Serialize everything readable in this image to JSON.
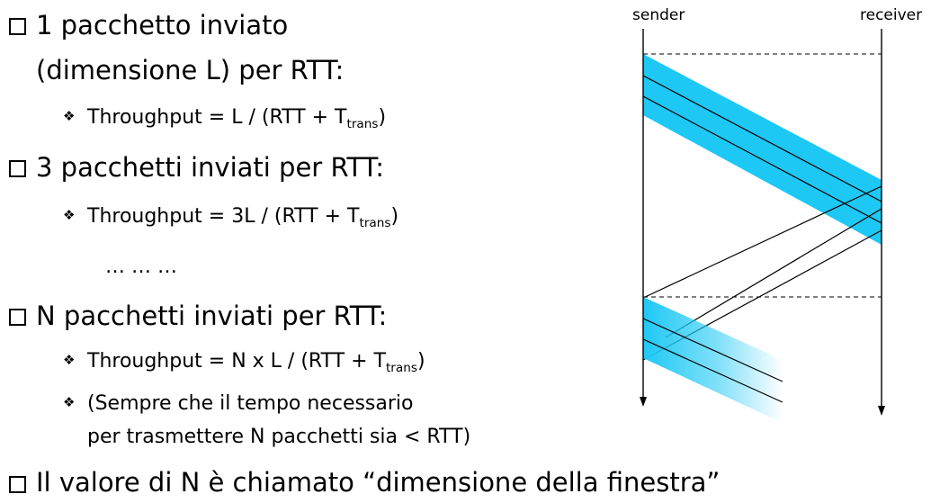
{
  "bullets": {
    "b1_title_line1": "1 pacchetto inviato",
    "b1_title_line2": "(dimensione L) per RTT:",
    "b1_formula_prefix": "Throughput = L / (RTT + T",
    "b1_formula_sub": "trans",
    "b1_formula_suffix": ")",
    "b2_title": "3 pacchetti inviati per RTT:",
    "b2_formula_prefix": "Throughput = 3L / (RTT + T",
    "b2_formula_sub": "trans",
    "b2_formula_suffix": ")",
    "ellipsis": "… … …",
    "b3_title": "N pacchetti inviati per RTT:",
    "b3_formula_prefix": "Throughput = N x L / (RTT + T",
    "b3_formula_sub": "trans",
    "b3_formula_suffix": ")",
    "b3_note_line1": "(Sempre che il tempo necessario",
    "b3_note_line2": "per trasmettere N pacchetti sia < RTT)",
    "b4_title": "Il valore di N è chiamato “dimensione della finestra”"
  },
  "diagram": {
    "sender_label": "sender",
    "receiver_label": "receiver",
    "packet_color": "#1ec8f5"
  }
}
